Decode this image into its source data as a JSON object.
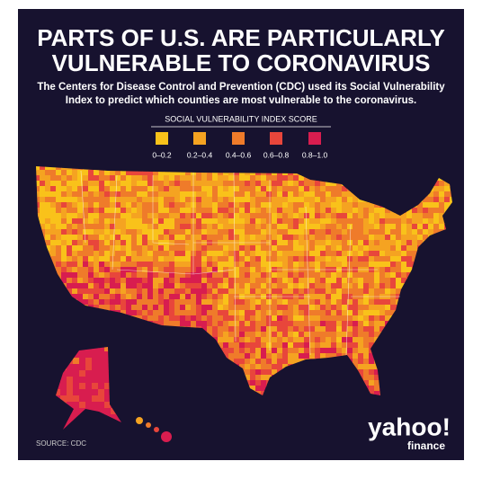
{
  "header": {
    "title": [
      "PARTS OF U.S. ARE PARTICULARLY",
      "VULNERABLE TO CORONAVIRUS"
    ],
    "subtitle": [
      "The Centers for Disease Control and Prevention (CDC) used its Social Vulnerability",
      "Index to predict which counties are most vulnerable to the coronavirus."
    ]
  },
  "legend": {
    "title": "SOCIAL VULNERABILITY INDEX SCORE",
    "items": [
      {
        "label": "0–0.2",
        "color": "#f9c21a"
      },
      {
        "label": "0.2–0.4",
        "color": "#f5a321"
      },
      {
        "label": "0.4–0.6",
        "color": "#ef7b2a"
      },
      {
        "label": "0.6–0.8",
        "color": "#e8463b"
      },
      {
        "label": "0.8–1.0",
        "color": "#d81d4f"
      }
    ]
  },
  "source": "SOURCE: CDC",
  "logo": {
    "brand": "yahoo!",
    "product": "finance"
  }
}
